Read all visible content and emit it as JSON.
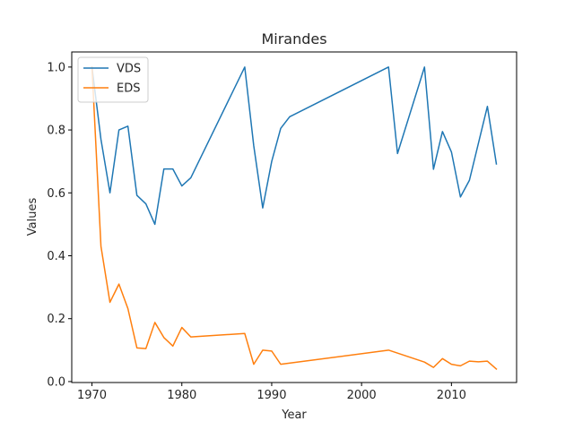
{
  "chart_data": {
    "type": "line",
    "title": "Mirandes",
    "xlabel": "Year",
    "ylabel": "Values",
    "xlim": [
      1967.75,
      2017.25
    ],
    "ylim": [
      -0.003,
      1.048
    ],
    "xticks": [
      1970,
      1980,
      1990,
      2000,
      2010
    ],
    "yticks": [
      0.0,
      0.2,
      0.4,
      0.6,
      0.8,
      1.0
    ],
    "ytick_labels": [
      "0.0",
      "0.2",
      "0.4",
      "0.6",
      "0.8",
      "1.0"
    ],
    "grid": false,
    "legend": "top-left",
    "series": [
      {
        "name": "VDS",
        "color": "#1f77b4",
        "points": [
          [
            1970,
            1.0
          ],
          [
            1971,
            0.77
          ],
          [
            1972,
            0.6
          ],
          [
            1973,
            0.8
          ],
          [
            1974,
            0.812
          ],
          [
            1975,
            0.592
          ],
          [
            1976,
            0.565
          ],
          [
            1977,
            0.5
          ],
          [
            1978,
            0.676
          ],
          [
            1979,
            0.676
          ],
          [
            1980,
            0.622
          ],
          [
            1981,
            0.648
          ],
          [
            1987,
            1.0
          ],
          [
            1988,
            0.75
          ],
          [
            1989,
            0.552
          ],
          [
            1990,
            0.7
          ],
          [
            1991,
            0.805
          ],
          [
            1992,
            0.842
          ],
          [
            2003,
            1.0
          ],
          [
            2004,
            0.725
          ],
          [
            2007,
            1.0
          ],
          [
            2008,
            0.675
          ],
          [
            2009,
            0.795
          ],
          [
            2010,
            0.73
          ],
          [
            2011,
            0.587
          ],
          [
            2012,
            0.64
          ],
          [
            2014,
            0.875
          ],
          [
            2015,
            0.692
          ]
        ]
      },
      {
        "name": "EDS",
        "color": "#ff7f0e",
        "points": [
          [
            1970,
            1.0
          ],
          [
            1971,
            0.43
          ],
          [
            1972,
            0.252
          ],
          [
            1973,
            0.31
          ],
          [
            1974,
            0.232
          ],
          [
            1975,
            0.107
          ],
          [
            1976,
            0.105
          ],
          [
            1977,
            0.188
          ],
          [
            1978,
            0.14
          ],
          [
            1979,
            0.113
          ],
          [
            1980,
            0.172
          ],
          [
            1981,
            0.142
          ],
          [
            1987,
            0.153
          ],
          [
            1988,
            0.055
          ],
          [
            1989,
            0.1
          ],
          [
            1990,
            0.097
          ],
          [
            1991,
            0.055
          ],
          [
            2003,
            0.1
          ],
          [
            2007,
            0.062
          ],
          [
            2008,
            0.045
          ],
          [
            2009,
            0.073
          ],
          [
            2010,
            0.055
          ],
          [
            2011,
            0.05
          ],
          [
            2012,
            0.065
          ],
          [
            2013,
            0.063
          ],
          [
            2014,
            0.065
          ],
          [
            2015,
            0.04
          ]
        ]
      }
    ]
  }
}
